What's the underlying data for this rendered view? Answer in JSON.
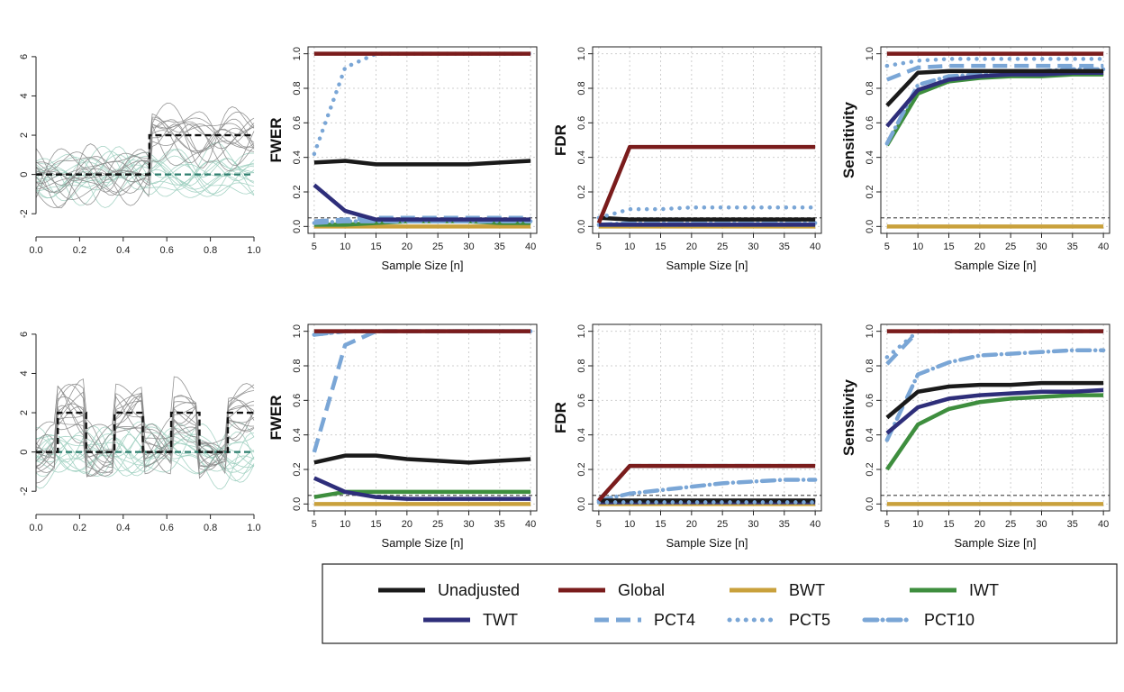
{
  "colors": {
    "Unadjusted": "#1a1a1a",
    "Global": "#7a1c1c",
    "BWT": "#c9a13c",
    "IWT": "#3e8e3e",
    "TWT": "#2e2e7a",
    "PCT4": "#7aa6d6",
    "PCT5": "#7aa6d6",
    "PCT10": "#7aa6d6",
    "curve_dark": "#8a8a8a",
    "curve_teal": "#9fcfc0",
    "mean_dark": "#111111",
    "mean_teal": "#2f7f6f",
    "ref_line": "#555555"
  },
  "legend": {
    "items": [
      {
        "name": "Unadjusted",
        "style": "solid"
      },
      {
        "name": "Global",
        "style": "solid"
      },
      {
        "name": "BWT",
        "style": "solid"
      },
      {
        "name": "IWT",
        "style": "solid"
      },
      {
        "name": "TWT",
        "style": "solid"
      },
      {
        "name": "PCT4",
        "style": "dashed"
      },
      {
        "name": "PCT5",
        "style": "dotted"
      },
      {
        "name": "PCT10",
        "style": "dashdot"
      }
    ]
  },
  "chart_data": [
    {
      "type": "line",
      "panel": "curves-top",
      "x_ticks": [
        "0.0",
        "0.2",
        "0.4",
        "0.6",
        "0.8",
        "1.0"
      ],
      "y_ticks": [
        "-2",
        "0",
        "2",
        "4",
        "6"
      ],
      "xlim": [
        0,
        1
      ],
      "ylim": [
        -3,
        6.5
      ],
      "mean_dark": {
        "x": [
          0,
          0.52,
          0.52,
          1.0
        ],
        "y": [
          0,
          0,
          2,
          2
        ]
      },
      "mean_teal": {
        "x": [
          0,
          1.0
        ],
        "y": [
          0,
          0
        ]
      }
    },
    {
      "type": "line",
      "panel": "fwer-top",
      "ylabel": "FWER",
      "xlabel": "Sample Size [n]",
      "x": [
        5,
        10,
        15,
        20,
        25,
        30,
        35,
        40
      ],
      "ylim": [
        0,
        1
      ],
      "ref_line": 0.05,
      "x_ticks": [
        "5",
        "10",
        "15",
        "20",
        "25",
        "30",
        "35",
        "40"
      ],
      "y_ticks": [
        "0.0",
        "0.2",
        "0.4",
        "0.6",
        "0.8",
        "1.0"
      ],
      "series": [
        {
          "name": "Unadjusted",
          "values": [
            0.37,
            0.38,
            0.36,
            0.36,
            0.36,
            0.36,
            0.37,
            0.38
          ]
        },
        {
          "name": "Global",
          "values": [
            1,
            1,
            1,
            1,
            1,
            1,
            1,
            1
          ]
        },
        {
          "name": "BWT",
          "values": [
            0,
            0,
            0,
            0,
            0,
            0,
            0,
            0
          ]
        },
        {
          "name": "IWT",
          "values": [
            0.01,
            0.01,
            0.02,
            0.03,
            0.03,
            0.03,
            0.02,
            0.02
          ]
        },
        {
          "name": "TWT",
          "values": [
            0.24,
            0.09,
            0.04,
            0.04,
            0.04,
            0.04,
            0.04,
            0.04
          ]
        },
        {
          "name": "PCT4",
          "values": [
            0.03,
            0.04,
            0.05,
            0.05,
            0.05,
            0.05,
            0.05,
            0.05
          ]
        },
        {
          "name": "PCT5",
          "values": [
            0.42,
            0.92,
            1,
            1,
            1,
            1,
            1,
            1
          ]
        },
        {
          "name": "PCT10",
          "values": [
            0.02,
            0.03,
            0.03,
            0.03,
            0.03,
            0.03,
            0.03,
            0.03
          ]
        }
      ]
    },
    {
      "type": "line",
      "panel": "fdr-top",
      "ylabel": "FDR",
      "xlabel": "Sample Size [n]",
      "x": [
        5,
        10,
        15,
        20,
        25,
        30,
        35,
        40
      ],
      "ylim": [
        0,
        1
      ],
      "ref_line": 0.05,
      "x_ticks": [
        "5",
        "10",
        "15",
        "20",
        "25",
        "30",
        "35",
        "40"
      ],
      "y_ticks": [
        "0.0",
        "0.2",
        "0.4",
        "0.6",
        "0.8",
        "1.0"
      ],
      "series": [
        {
          "name": "Unadjusted",
          "values": [
            0.05,
            0.04,
            0.04,
            0.04,
            0.04,
            0.04,
            0.04,
            0.04
          ]
        },
        {
          "name": "Global",
          "values": [
            0.02,
            0.46,
            0.46,
            0.46,
            0.46,
            0.46,
            0.46,
            0.46
          ]
        },
        {
          "name": "BWT",
          "values": [
            0,
            0,
            0,
            0,
            0,
            0,
            0,
            0
          ]
        },
        {
          "name": "IWT",
          "values": [
            0.01,
            0.01,
            0.01,
            0.01,
            0.01,
            0.01,
            0.01,
            0.01
          ]
        },
        {
          "name": "TWT",
          "values": [
            0.01,
            0.01,
            0.01,
            0.01,
            0.01,
            0.01,
            0.01,
            0.01
          ]
        },
        {
          "name": "PCT4",
          "values": [
            0.01,
            0.01,
            0.01,
            0.01,
            0.01,
            0.01,
            0.01,
            0.01
          ]
        },
        {
          "name": "PCT5",
          "values": [
            0.05,
            0.1,
            0.1,
            0.11,
            0.11,
            0.11,
            0.11,
            0.11
          ]
        },
        {
          "name": "PCT10",
          "values": [
            0.01,
            0.02,
            0.02,
            0.02,
            0.02,
            0.02,
            0.02,
            0.02
          ]
        }
      ]
    },
    {
      "type": "line",
      "panel": "sens-top",
      "ylabel": "Sensitivity",
      "xlabel": "Sample Size [n]",
      "x": [
        5,
        10,
        15,
        20,
        25,
        30,
        35,
        40
      ],
      "ylim": [
        0,
        1
      ],
      "ref_line": 0.05,
      "x_ticks": [
        "5",
        "10",
        "15",
        "20",
        "25",
        "30",
        "35",
        "40"
      ],
      "y_ticks": [
        "0.0",
        "0.2",
        "0.4",
        "0.6",
        "0.8",
        "1.0"
      ],
      "series": [
        {
          "name": "Unadjusted",
          "values": [
            0.7,
            0.89,
            0.9,
            0.9,
            0.9,
            0.9,
            0.9,
            0.9
          ]
        },
        {
          "name": "Global",
          "values": [
            1,
            1,
            1,
            1,
            1,
            1,
            1,
            1
          ]
        },
        {
          "name": "BWT",
          "values": [
            0,
            0,
            0,
            0,
            0,
            0,
            0,
            0
          ]
        },
        {
          "name": "IWT",
          "values": [
            0.47,
            0.77,
            0.84,
            0.86,
            0.87,
            0.87,
            0.88,
            0.88
          ]
        },
        {
          "name": "TWT",
          "values": [
            0.58,
            0.79,
            0.85,
            0.87,
            0.88,
            0.88,
            0.89,
            0.89
          ]
        },
        {
          "name": "PCT4",
          "values": [
            0.85,
            0.92,
            0.93,
            0.93,
            0.93,
            0.93,
            0.93,
            0.93
          ]
        },
        {
          "name": "PCT5",
          "values": [
            0.93,
            0.96,
            0.97,
            0.97,
            0.97,
            0.97,
            0.97,
            0.97
          ]
        },
        {
          "name": "PCT10",
          "values": [
            0.48,
            0.82,
            0.87,
            0.88,
            0.9,
            0.9,
            0.91,
            0.91
          ]
        }
      ]
    },
    {
      "type": "line",
      "panel": "curves-bottom",
      "x_ticks": [
        "0.0",
        "0.2",
        "0.4",
        "0.6",
        "0.8",
        "1.0"
      ],
      "y_ticks": [
        "-2",
        "0",
        "2",
        "4",
        "6"
      ],
      "xlim": [
        0,
        1
      ],
      "ylim": [
        -3,
        6.5
      ],
      "mean_dark": {
        "x": [
          0,
          0.1,
          0.1,
          0.23,
          0.23,
          0.36,
          0.36,
          0.49,
          0.49,
          0.62,
          0.62,
          0.75,
          0.75,
          0.88,
          0.88,
          1.0
        ],
        "y": [
          0,
          0,
          2,
          2,
          0,
          0,
          2,
          2,
          0,
          0,
          2,
          2,
          0,
          0,
          2,
          2
        ]
      },
      "mean_teal": {
        "x": [
          0,
          1.0
        ],
        "y": [
          0,
          0
        ]
      }
    },
    {
      "type": "line",
      "panel": "fwer-bottom",
      "ylabel": "FWER",
      "xlabel": "Sample Size [n]",
      "x": [
        5,
        10,
        15,
        20,
        25,
        30,
        35,
        40
      ],
      "ylim": [
        0,
        1
      ],
      "ref_line": 0.05,
      "x_ticks": [
        "5",
        "10",
        "15",
        "20",
        "25",
        "30",
        "35",
        "40"
      ],
      "y_ticks": [
        "0.0",
        "0.2",
        "0.4",
        "0.6",
        "0.8",
        "1.0"
      ],
      "series": [
        {
          "name": "Unadjusted",
          "values": [
            0.24,
            0.28,
            0.28,
            0.26,
            0.25,
            0.24,
            0.25,
            0.26
          ]
        },
        {
          "name": "Global",
          "values": [
            1,
            1,
            1,
            1,
            1,
            1,
            1,
            1
          ]
        },
        {
          "name": "BWT",
          "values": [
            0,
            0,
            0,
            0,
            0,
            0,
            0,
            0
          ]
        },
        {
          "name": "IWT",
          "values": [
            0.04,
            0.07,
            0.07,
            0.07,
            0.07,
            0.07,
            0.07,
            0.07
          ]
        },
        {
          "name": "TWT",
          "values": [
            0.15,
            0.07,
            0.04,
            0.03,
            0.03,
            0.03,
            0.03,
            0.03
          ]
        },
        {
          "name": "PCT4",
          "values": [
            0.3,
            0.92,
            1,
            1,
            1,
            1,
            1,
            1
          ]
        },
        {
          "name": "PCT5",
          "values": [
            0.98,
            1,
            1,
            1,
            1,
            1,
            1,
            1
          ]
        },
        {
          "name": "PCT10",
          "values": [
            0.98,
            1,
            1,
            1,
            1,
            1,
            1,
            1
          ]
        }
      ]
    },
    {
      "type": "line",
      "panel": "fdr-bottom",
      "ylabel": "FDR",
      "xlabel": "Sample Size [n]",
      "x": [
        5,
        10,
        15,
        20,
        25,
        30,
        35,
        40
      ],
      "ylim": [
        0,
        1
      ],
      "ref_line": 0.05,
      "x_ticks": [
        "5",
        "10",
        "15",
        "20",
        "25",
        "30",
        "35",
        "40"
      ],
      "y_ticks": [
        "0.0",
        "0.2",
        "0.4",
        "0.6",
        "0.8",
        "1.0"
      ],
      "series": [
        {
          "name": "Unadjusted",
          "values": [
            0.02,
            0.02,
            0.02,
            0.02,
            0.02,
            0.02,
            0.02,
            0.02
          ]
        },
        {
          "name": "Global",
          "values": [
            0.02,
            0.22,
            0.22,
            0.22,
            0.22,
            0.22,
            0.22,
            0.22
          ]
        },
        {
          "name": "BWT",
          "values": [
            0,
            0,
            0,
            0,
            0,
            0,
            0,
            0
          ]
        },
        {
          "name": "IWT",
          "values": [
            0.01,
            0.01,
            0.01,
            0.01,
            0.01,
            0.01,
            0.01,
            0.01
          ]
        },
        {
          "name": "TWT",
          "values": [
            0.01,
            0.01,
            0.01,
            0.01,
            0.01,
            0.01,
            0.01,
            0.01
          ]
        },
        {
          "name": "PCT4",
          "values": [
            0.02,
            0.22,
            0.22,
            0.22,
            0.22,
            0.22,
            0.22,
            0.22
          ]
        },
        {
          "name": "PCT5",
          "values": [
            0.01,
            0.01,
            0.01,
            0.01,
            0.01,
            0.01,
            0.01,
            0.01
          ]
        },
        {
          "name": "PCT10",
          "values": [
            0.02,
            0.06,
            0.08,
            0.1,
            0.12,
            0.13,
            0.14,
            0.14
          ]
        }
      ]
    },
    {
      "type": "line",
      "panel": "sens-bottom",
      "ylabel": "Sensitivity",
      "xlabel": "Sample Size [n]",
      "x": [
        5,
        10,
        15,
        20,
        25,
        30,
        35,
        40
      ],
      "ylim": [
        0,
        1
      ],
      "ref_line": 0.05,
      "x_ticks": [
        "5",
        "10",
        "15",
        "20",
        "25",
        "30",
        "35",
        "40"
      ],
      "y_ticks": [
        "0.0",
        "0.2",
        "0.4",
        "0.6",
        "0.8",
        "1.0"
      ],
      "series": [
        {
          "name": "Unadjusted",
          "values": [
            0.5,
            0.65,
            0.68,
            0.69,
            0.69,
            0.7,
            0.7,
            0.7
          ]
        },
        {
          "name": "Global",
          "values": [
            1,
            1,
            1,
            1,
            1,
            1,
            1,
            1
          ]
        },
        {
          "name": "BWT",
          "values": [
            0,
            0,
            0,
            0,
            0,
            0,
            0,
            0
          ]
        },
        {
          "name": "IWT",
          "values": [
            0.2,
            0.46,
            0.55,
            0.59,
            0.61,
            0.62,
            0.63,
            0.63
          ]
        },
        {
          "name": "TWT",
          "values": [
            0.41,
            0.56,
            0.61,
            0.63,
            0.64,
            0.65,
            0.65,
            0.66
          ]
        },
        {
          "name": "PCT4",
          "values": [
            0.81,
            1,
            1,
            1,
            1,
            1,
            1,
            1
          ]
        },
        {
          "name": "PCT5",
          "values": [
            0.85,
            1,
            1,
            1,
            1,
            1,
            1,
            1
          ]
        },
        {
          "name": "PCT10",
          "values": [
            0.37,
            0.75,
            0.82,
            0.86,
            0.87,
            0.88,
            0.89,
            0.89
          ]
        }
      ]
    }
  ]
}
